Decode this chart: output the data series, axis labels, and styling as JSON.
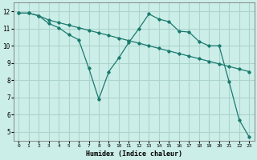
{
  "xlabel": "Humidex (Indice chaleur)",
  "background_color": "#cceee8",
  "grid_color": "#aad4cc",
  "line_color": "#1a7a6e",
  "xlim": [
    -0.5,
    23.5
  ],
  "ylim": [
    4.5,
    12.5
  ],
  "yticks": [
    5,
    6,
    7,
    8,
    9,
    10,
    11,
    12
  ],
  "xticks": [
    0,
    1,
    2,
    3,
    4,
    5,
    6,
    7,
    8,
    9,
    10,
    11,
    12,
    13,
    14,
    15,
    16,
    17,
    18,
    19,
    20,
    21,
    22,
    23
  ],
  "line1_x": [
    0,
    1,
    2,
    3,
    4,
    5,
    6,
    7,
    8,
    9,
    10,
    11,
    12,
    13,
    14,
    15,
    16,
    17,
    18,
    19,
    20,
    21,
    22,
    23
  ],
  "line1_y": [
    11.9,
    11.9,
    11.75,
    11.5,
    11.35,
    11.2,
    11.05,
    10.9,
    10.75,
    10.6,
    10.45,
    10.3,
    10.15,
    10.0,
    9.85,
    9.7,
    9.55,
    9.4,
    9.25,
    9.1,
    8.95,
    8.8,
    8.65,
    8.5
  ],
  "line2_x": [
    0,
    1,
    2,
    3,
    4,
    5,
    6,
    7,
    8,
    9,
    10,
    11,
    12,
    13,
    14,
    15,
    16,
    17,
    18,
    19,
    20,
    21,
    22,
    23
  ],
  "line2_y": [
    11.9,
    11.9,
    11.75,
    11.3,
    11.05,
    10.65,
    10.35,
    8.7,
    6.9,
    8.5,
    9.3,
    10.2,
    11.0,
    11.85,
    11.55,
    11.4,
    10.85,
    10.8,
    10.25,
    10.0,
    10.0,
    7.9,
    5.7,
    4.7
  ]
}
